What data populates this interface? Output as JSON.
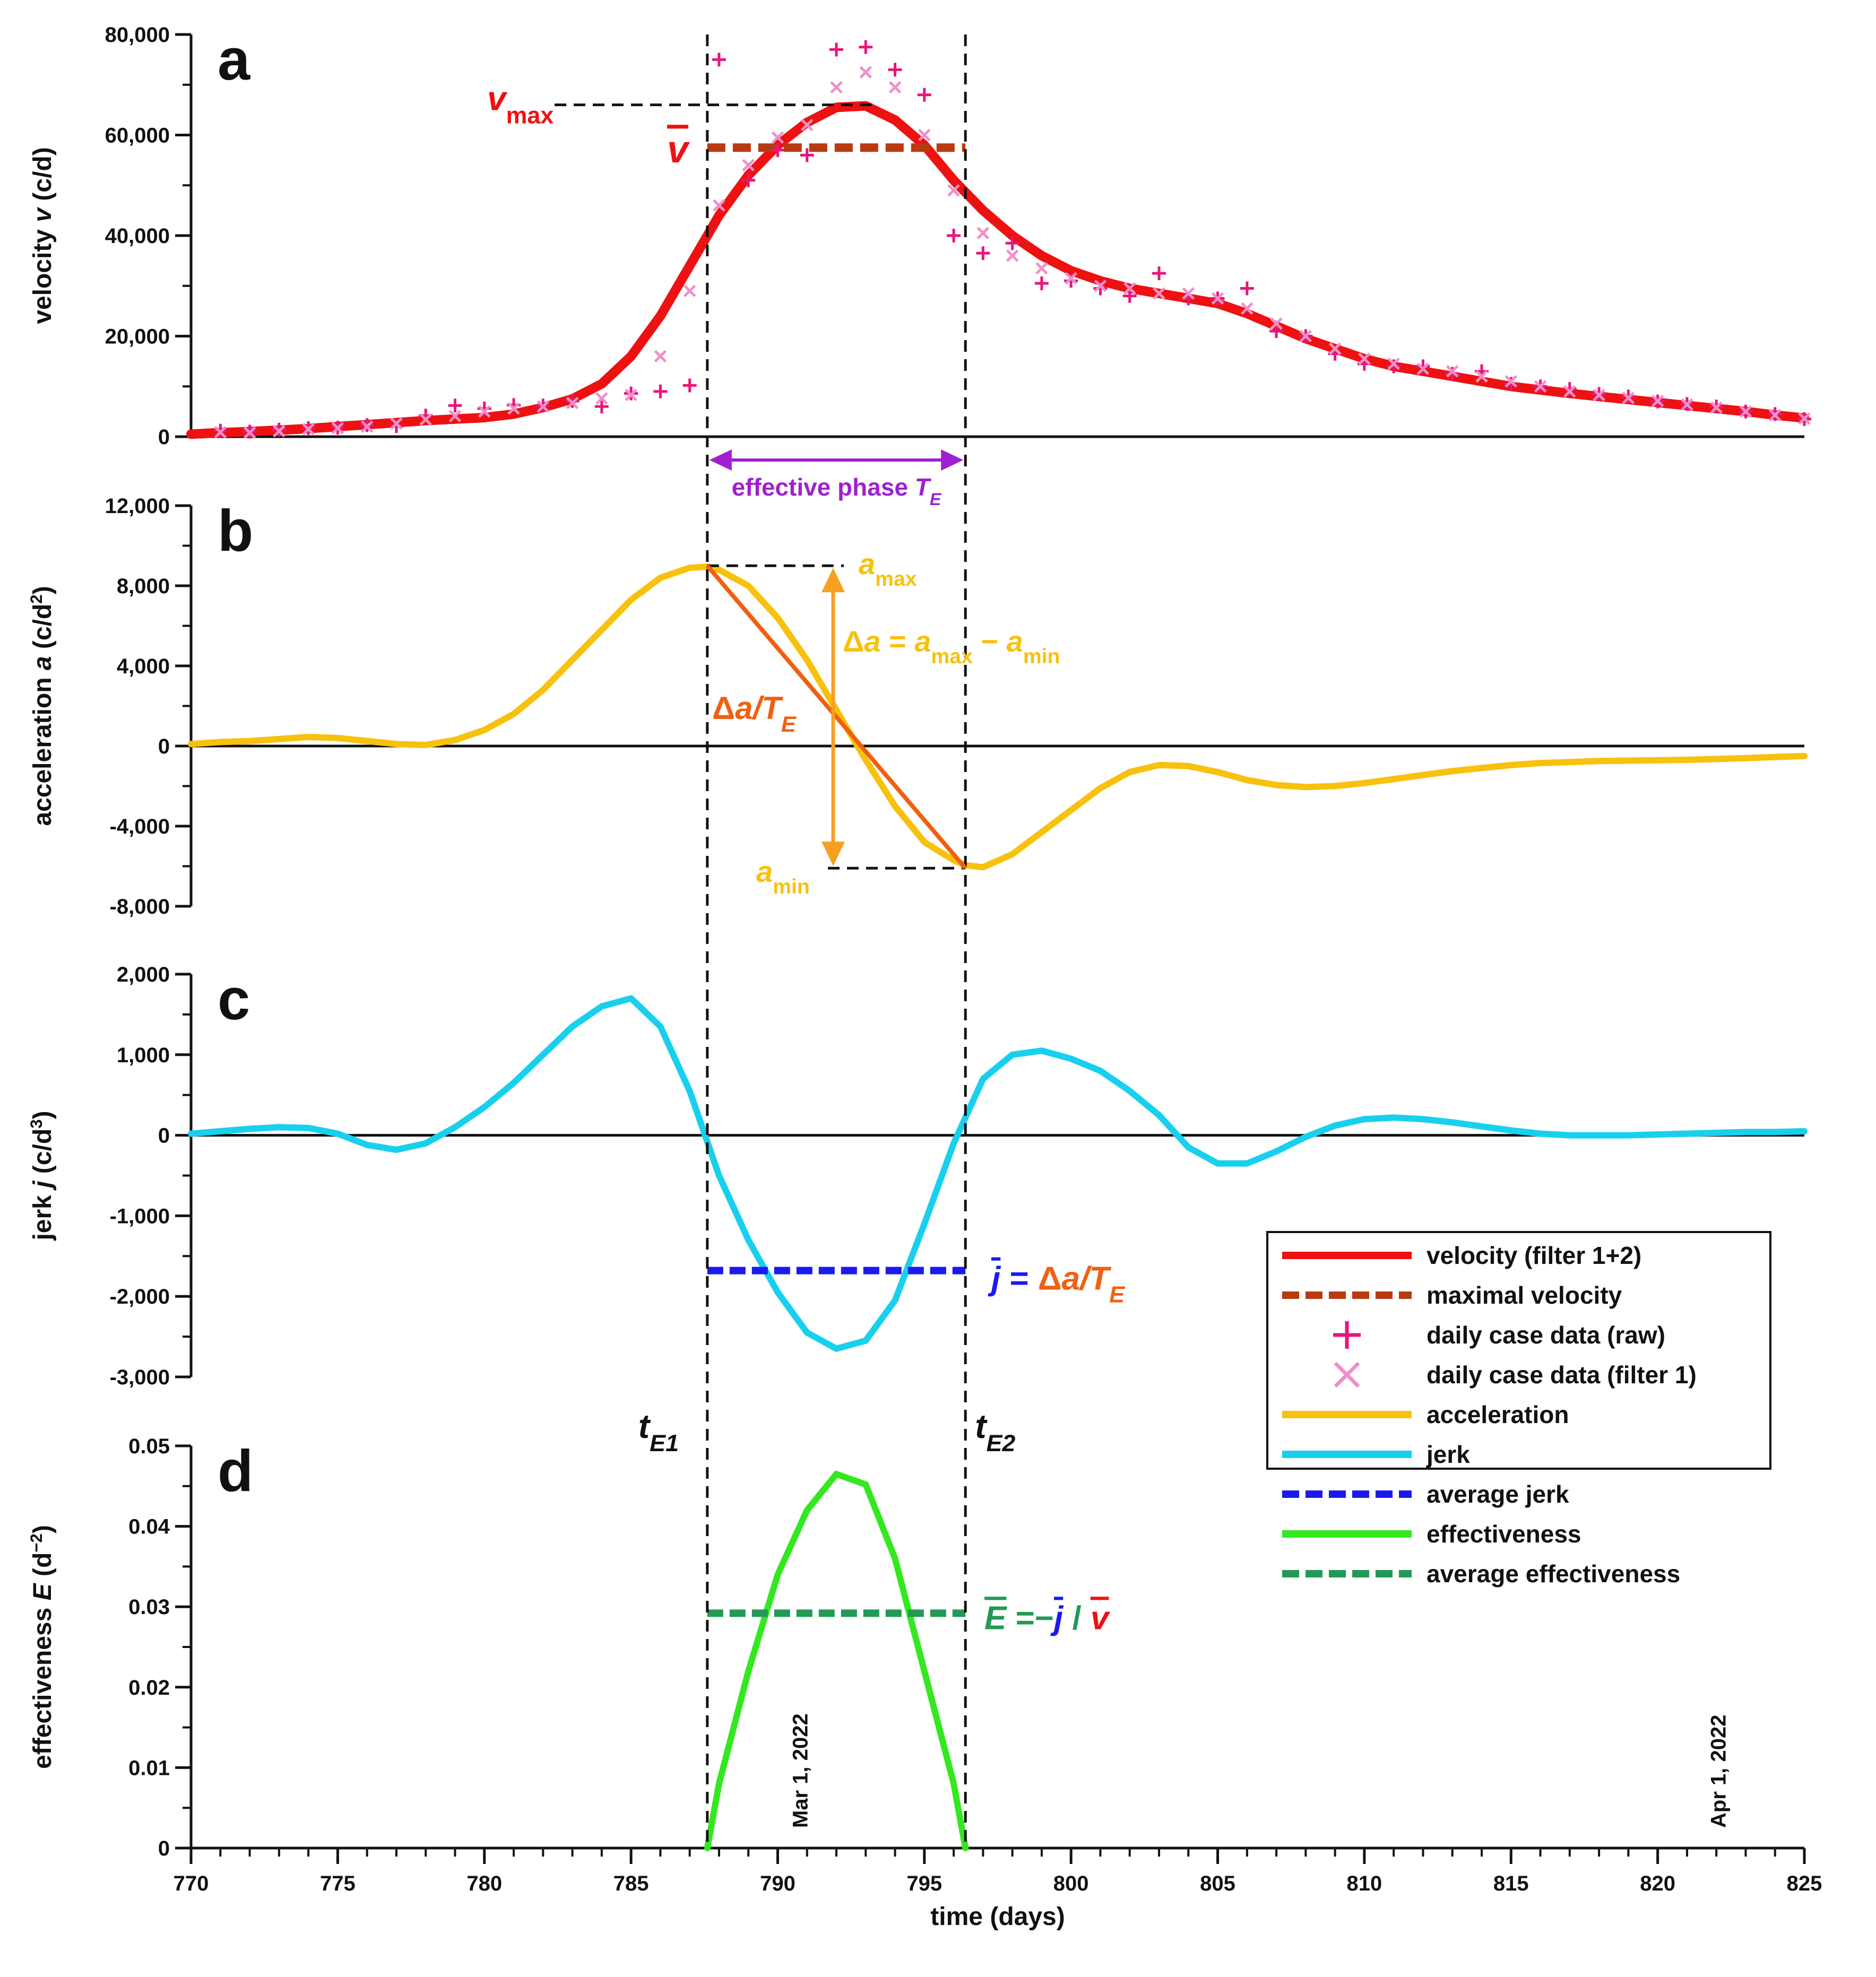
{
  "chart_data": {
    "type": "line",
    "title": "",
    "xlabel": "time (days)",
    "xlim": [
      770,
      825
    ],
    "x_ticks": [
      770,
      775,
      780,
      785,
      790,
      795,
      800,
      805,
      810,
      815,
      820,
      825
    ],
    "date_annotations": [
      {
        "x": 790.8,
        "label": "Mar 1, 2022"
      },
      {
        "x": 822.1,
        "label": "Apr 1, 2022"
      }
    ],
    "effective_phase": {
      "t_start": 787.6,
      "t_end": 796.4,
      "label": "effective phase ",
      "label_sub": "T",
      "label_subscript": "E",
      "tE1": "t",
      "tE1_sub": "E1",
      "tE2": "t",
      "tE2_sub": "E2"
    },
    "colors": {
      "velocity": "#ee1111",
      "max_velocity": "#b83a10",
      "raw": "#e8157a",
      "filter1": "#f090c8",
      "acceleration": "#f7c10e",
      "jerk": "#18d0ee",
      "avg_jerk": "#1a1af0",
      "effectiveness": "#33e81f",
      "avg_effectiveness": "#229955",
      "slope": "#f06010",
      "delta_arrow": "#f5a020",
      "phase": "#a020d0",
      "black": "#111111"
    },
    "panels": [
      {
        "id": "a",
        "letter": "a",
        "ylabel_pre": "velocity ",
        "ylabel_var": "v",
        "ylabel_post": " (c/d)",
        "ylim": [
          0,
          80000
        ],
        "y_ticks": [
          0,
          20000,
          40000,
          60000,
          80000
        ],
        "y_tick_labels": [
          "0",
          "20,000",
          "40,000",
          "60,000",
          "80,000"
        ],
        "series": [
          {
            "name": "velocity (filter 1+2)",
            "x": [
              770,
              771,
              772,
              773,
              774,
              775,
              776,
              777,
              778,
              779,
              780,
              781,
              782,
              783,
              784,
              785,
              786,
              787,
              788,
              789,
              790,
              791,
              792,
              793,
              794,
              795,
              796,
              797,
              798,
              799,
              800,
              801,
              802,
              803,
              804,
              805,
              806,
              807,
              808,
              809,
              810,
              811,
              812,
              813,
              814,
              815,
              816,
              817,
              818,
              819,
              820,
              821,
              822,
              823,
              824,
              825
            ],
            "values": [
              500,
              800,
              1000,
              1300,
              1600,
              2000,
              2400,
              2800,
              3200,
              3500,
              3800,
              4500,
              5800,
              7500,
              10500,
              16000,
              24000,
              34000,
              44000,
              52000,
              58000,
              62500,
              65500,
              65800,
              63000,
              58000,
              51000,
              45000,
              40000,
              36000,
              33000,
              31000,
              29500,
              28500,
              27500,
              26500,
              24500,
              22000,
              19500,
              17500,
              15500,
              14000,
              13000,
              12000,
              11000,
              10000,
              9300,
              8600,
              8000,
              7400,
              6800,
              6200,
              5600,
              5000,
              4300,
              3700
            ]
          },
          {
            "name": "daily case data (raw)",
            "x": [
              771,
              772,
              773,
              774,
              775,
              776,
              777,
              778,
              779,
              780,
              781,
              782,
              783,
              784,
              785,
              786,
              787,
              788,
              789,
              790,
              791,
              792,
              793,
              794,
              795,
              796,
              797,
              798,
              799,
              800,
              801,
              802,
              803,
              804,
              805,
              806,
              807,
              808,
              809,
              810,
              811,
              812,
              813,
              814,
              815,
              816,
              817,
              818,
              819,
              820,
              821,
              822,
              823,
              824,
              825
            ],
            "values": [
              1200,
              1000,
              1400,
              1700,
              1800,
              2300,
              2100,
              4200,
              6200,
              5600,
              6300,
              6200,
              7100,
              6000,
              8600,
              9000,
              10200,
              75000,
              51000,
              57000,
              56000,
              77000,
              77500,
              73000,
              68000,
              40000,
              36500,
              38500,
              30500,
              31000,
              29500,
              28000,
              32500,
              27500,
              27500,
              29500,
              21000,
              20000,
              16500,
              14500,
              14000,
              14000,
              12500,
              13000,
              10500,
              10000,
              9500,
              8500,
              8000,
              7000,
              6500,
              6000,
              5000,
              4500,
              3500
            ]
          },
          {
            "name": "daily case data (filter 1)",
            "x": [
              771,
              772,
              773,
              774,
              775,
              776,
              777,
              778,
              779,
              780,
              781,
              782,
              783,
              784,
              785,
              786,
              787,
              788,
              789,
              790,
              791,
              792,
              793,
              794,
              795,
              796,
              797,
              798,
              799,
              800,
              801,
              802,
              803,
              804,
              805,
              806,
              807,
              808,
              809,
              810,
              811,
              812,
              813,
              814,
              815,
              816,
              817,
              818,
              819,
              820,
              821,
              822,
              823,
              824,
              825
            ],
            "values": [
              900,
              800,
              1100,
              1500,
              1700,
              2000,
              2600,
              3400,
              4100,
              5000,
              5600,
              6000,
              6700,
              7600,
              8300,
              16000,
              29000,
              46000,
              54000,
              59500,
              62000,
              69500,
              72500,
              69500,
              60000,
              49000,
              40500,
              36000,
              33500,
              31500,
              30000,
              29500,
              28500,
              28500,
              27500,
              25500,
              22500,
              20000,
              17500,
              15500,
              14500,
              13500,
              13000,
              12000,
              11000,
              10000,
              9000,
              8300,
              7700,
              7100,
              6400,
              5800,
              5000,
              4300,
              3600
            ]
          }
        ],
        "average": {
          "name": "maximal velocity",
          "value": 57500,
          "label_var": "v"
        },
        "max_marker": {
          "value": 66000,
          "label_var": "v",
          "label_sub": "max"
        }
      },
      {
        "id": "b",
        "letter": "b",
        "ylabel_pre": "acceleration ",
        "ylabel_var": "a",
        "ylabel_post": " (c/d",
        "ylabel_sup": "2",
        "ylabel_end": ")",
        "ylim": [
          -8000,
          12000
        ],
        "y_ticks": [
          -8000,
          -4000,
          0,
          4000,
          8000,
          12000
        ],
        "y_tick_labels": [
          "-8,000",
          "-4,000",
          "0",
          "4,000",
          "8,000",
          "12,000"
        ],
        "series": [
          {
            "name": "acceleration",
            "x": [
              770,
              771,
              772,
              773,
              774,
              775,
              776,
              777,
              778,
              779,
              780,
              781,
              782,
              783,
              784,
              785,
              786,
              787,
              787.6,
              788,
              789,
              790,
              791,
              792,
              793,
              794,
              795,
              796,
              796.4,
              797,
              798,
              799,
              800,
              801,
              802,
              803,
              804,
              805,
              806,
              807,
              808,
              809,
              810,
              811,
              812,
              813,
              814,
              815,
              816,
              817,
              818,
              819,
              820,
              821,
              822,
              823,
              824,
              825
            ],
            "values": [
              100,
              200,
              250,
              350,
              450,
              400,
              250,
              100,
              50,
              300,
              800,
              1600,
              2800,
              4300,
              5800,
              7300,
              8400,
              8900,
              8950,
              8800,
              8000,
              6400,
              4300,
              1800,
              -700,
              -3000,
              -4800,
              -5700,
              -5950,
              -6050,
              -5400,
              -4300,
              -3200,
              -2100,
              -1300,
              -950,
              -1000,
              -1300,
              -1700,
              -1950,
              -2050,
              -2000,
              -1850,
              -1650,
              -1450,
              -1250,
              -1100,
              -950,
              -850,
              -800,
              -750,
              -730,
              -710,
              -690,
              -650,
              -600,
              -550,
              -500
            ]
          }
        ],
        "annotations": {
          "a_max": 9000,
          "a_min": -6100,
          "a_max_label_var": "a",
          "a_max_label_sub": "max",
          "a_min_label_var": "a",
          "a_min_label_sub": "min",
          "delta_label": "Δ",
          "delta_var": "a",
          "delta_eq": " = ",
          "delta_amax_var": "a",
          "delta_amax_sub": "max",
          "delta_minus": " − ",
          "delta_amin_var": "a",
          "delta_amin_sub": "min",
          "slope_label": "Δ",
          "slope_var": "a/T",
          "slope_sub": "E"
        }
      },
      {
        "id": "c",
        "letter": "c",
        "ylabel_pre": "jerk ",
        "ylabel_var": "j",
        "ylabel_post": " (c/d",
        "ylabel_sup": "3",
        "ylabel_end": ")",
        "ylim": [
          -3000,
          2000
        ],
        "y_ticks": [
          -3000,
          -2000,
          -1000,
          0,
          1000,
          2000
        ],
        "y_tick_labels": [
          "-3,000",
          "-2,000",
          "-1,000",
          "0",
          "1,000",
          "2,000"
        ],
        "series": [
          {
            "name": "jerk",
            "x": [
              770,
              771,
              772,
              773,
              774,
              775,
              776,
              777,
              778,
              779,
              780,
              781,
              782,
              783,
              784,
              785,
              786,
              787,
              788,
              789,
              790,
              791,
              792,
              793,
              794,
              795,
              796,
              797,
              798,
              799,
              800,
              801,
              802,
              803,
              804,
              805,
              806,
              807,
              808,
              809,
              810,
              811,
              812,
              813,
              814,
              815,
              816,
              817,
              818,
              819,
              820,
              821,
              822,
              823,
              824,
              825
            ],
            "values": [
              20,
              50,
              80,
              100,
              90,
              20,
              -120,
              -180,
              -100,
              100,
              350,
              650,
              1000,
              1350,
              1600,
              1700,
              1350,
              550,
              -500,
              -1300,
              -1950,
              -2450,
              -2650,
              -2550,
              -2050,
              -1100,
              -100,
              700,
              1000,
              1050,
              950,
              800,
              550,
              250,
              -150,
              -350,
              -350,
              -200,
              -20,
              120,
              200,
              220,
              200,
              160,
              110,
              60,
              20,
              0,
              0,
              0,
              10,
              20,
              30,
              40,
              40,
              50
            ]
          }
        ],
        "average": {
          "name": "average jerk",
          "value": -1680,
          "label_var": "j",
          "label_eq": " = ",
          "label_delta": "Δ",
          "label_rest": "a/T",
          "label_sub": "E"
        }
      },
      {
        "id": "d",
        "letter": "d",
        "ylabel_pre": "effectiveness ",
        "ylabel_var": "E",
        "ylabel_post": " (d",
        "ylabel_sup": "−2",
        "ylabel_end": ")",
        "ylim": [
          0,
          0.05
        ],
        "y_ticks": [
          0,
          0.01,
          0.02,
          0.03,
          0.04,
          0.05
        ],
        "y_tick_labels": [
          "0",
          "0.01",
          "0.02",
          "0.03",
          "0.04",
          "0.05"
        ],
        "series": [
          {
            "name": "effectiveness",
            "x": [
              787.6,
              788,
              789,
              790,
              791,
              792,
              793,
              794,
              795,
              796,
              796.4
            ],
            "values": [
              0,
              0.008,
              0.022,
              0.034,
              0.042,
              0.0465,
              0.0452,
              0.036,
              0.022,
              0.008,
              0
            ]
          }
        ],
        "average": {
          "name": "average effectiveness",
          "value": 0.0292,
          "label_var": "E",
          "label_eq": " =−",
          "label_j": "j",
          "label_div": " / ",
          "label_v": "v"
        }
      }
    ],
    "legend": {
      "position": "right, panels c–d",
      "entries": [
        {
          "label": "velocity (filter 1+2)",
          "style": "solid",
          "color_key": "velocity"
        },
        {
          "label": "maximal velocity",
          "style": "dashed",
          "color_key": "max_velocity"
        },
        {
          "label": "daily case data (raw)",
          "style": "plus",
          "color_key": "raw"
        },
        {
          "label": "daily case data (filter 1)",
          "style": "cross",
          "color_key": "filter1"
        },
        {
          "label": "acceleration",
          "style": "solid",
          "color_key": "acceleration"
        },
        {
          "label": "jerk",
          "style": "solid",
          "color_key": "jerk"
        },
        {
          "label": "average jerk",
          "style": "dashed",
          "color_key": "avg_jerk"
        },
        {
          "label": "effectiveness",
          "style": "solid",
          "color_key": "effectiveness"
        },
        {
          "label": "average effectiveness",
          "style": "dashed",
          "color_key": "avg_effectiveness"
        }
      ]
    }
  }
}
